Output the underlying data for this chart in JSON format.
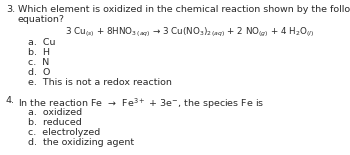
{
  "background_color": "#ffffff",
  "text_color": "#2a2a2a",
  "font_size": 6.8,
  "font_size_eq": 6.3,
  "q3_number": "3.",
  "q3_line1": "Which element is oxidized in the chemical reaction shown by the following chemical",
  "q3_line2": "equation?",
  "q3_eq": "3 Cu$_{(s)}$ + 8HNO$_{3\\,(aq)}$ → 3 Cu(NO$_3)_2$$_{(aq)}$ + 2 NO$_{(g)}$ + 4 H$_2$O$_{(l)}$",
  "q3_choices": [
    "a.  Cu",
    "b.  H",
    "c.  N",
    "d.  O",
    "e.  This is not a redox reaction"
  ],
  "q4_number": "4.",
  "q4_line": "In the reaction Fe  →  Fe$^{3+}$ + 3e$^{-}$, the species Fe is",
  "q4_choices": [
    "a.  oxidized",
    "b.  reduced",
    "c.  electrolyzed",
    "d.  the oxidizing agent"
  ]
}
